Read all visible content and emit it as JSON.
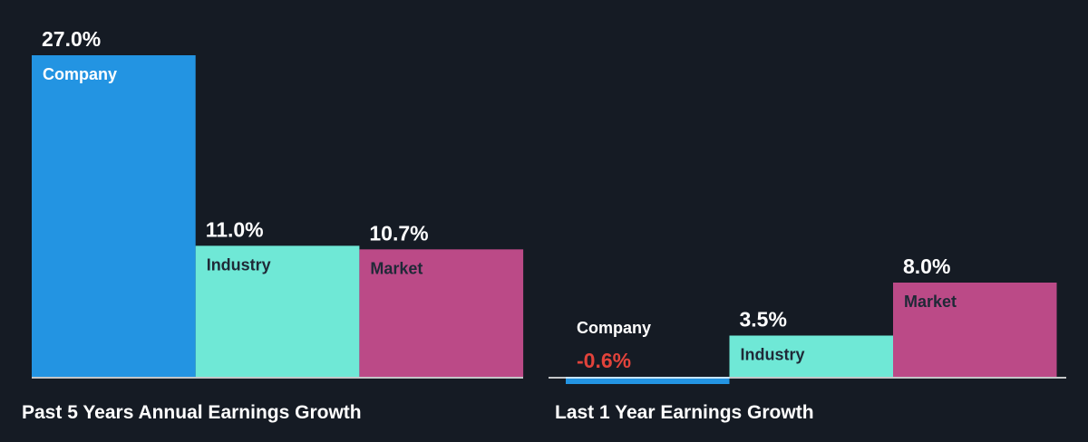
{
  "colors": {
    "background": "#151b24",
    "company": "#2394e2",
    "industry": "#6fe8d6",
    "market": "#bb4a87",
    "negative_label": "#e2433b",
    "positive_label": "#ffffff",
    "inner_label": "#1f2937",
    "baseline": "#ffffff"
  },
  "chart_data": [
    {
      "type": "bar",
      "title": "Past 5 Years Annual Earnings Growth",
      "categories": [
        "Company",
        "Industry",
        "Market"
      ],
      "values": [
        27.0,
        11.0,
        10.7
      ],
      "value_labels": [
        "27.0%",
        "11.0%",
        "10.7%"
      ],
      "unit": "%",
      "ylim": [
        0,
        27.0
      ],
      "grid": false,
      "legend": "none"
    },
    {
      "type": "bar",
      "title": "Last 1 Year Earnings Growth",
      "categories": [
        "Company",
        "Industry",
        "Market"
      ],
      "values": [
        -0.6,
        3.5,
        8.0
      ],
      "value_labels": [
        "-0.6%",
        "3.5%",
        "8.0%"
      ],
      "unit": "%",
      "ylim": [
        0,
        8.0
      ],
      "grid": false,
      "legend": "none"
    }
  ]
}
